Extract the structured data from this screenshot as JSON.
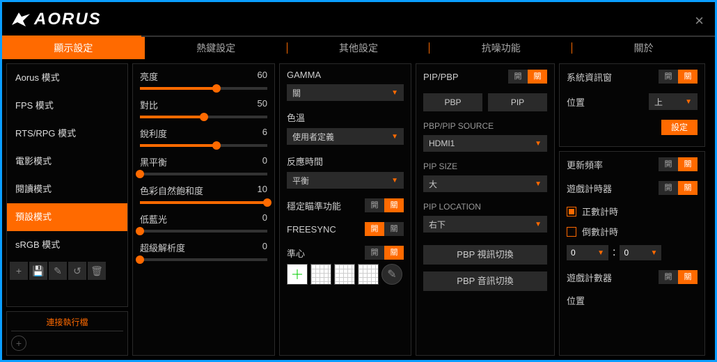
{
  "brand": "AORUS",
  "close_icon": "×",
  "tabs": [
    "顯示設定",
    "熱鍵設定",
    "其他設定",
    "抗噪功能",
    "關於"
  ],
  "active_tab": 0,
  "modes": [
    "Aorus 模式",
    "FPS 模式",
    "RTS/RPG 模式",
    "電影模式",
    "閱讀模式",
    "預設模式",
    "sRGB 模式"
  ],
  "active_mode": 5,
  "link_exec": "連接執行檔",
  "sliders": [
    {
      "label": "亮度",
      "value": 60,
      "max": 100
    },
    {
      "label": "對比",
      "value": 50,
      "max": 100
    },
    {
      "label": "銳利度",
      "value": 6,
      "max": 10
    },
    {
      "label": "黑平衡",
      "value": 0,
      "max": 10
    },
    {
      "label": "色彩自然飽和度",
      "value": 10,
      "max": 10
    },
    {
      "label": "低藍光",
      "value": 0,
      "max": 10
    },
    {
      "label": "超級解析度",
      "value": 0,
      "max": 10
    }
  ],
  "gamma": {
    "label": "GAMMA",
    "value": "關"
  },
  "color_temp": {
    "label": "色溫",
    "value": "使用者定義"
  },
  "response": {
    "label": "反應時間",
    "value": "平衡"
  },
  "aim_stab": {
    "label": "穩定瞄準功能",
    "on": "開",
    "off": "關",
    "active": "off"
  },
  "freesync": {
    "label": "FREESYNC",
    "on": "開",
    "off": "關",
    "active": "on"
  },
  "crosshair": {
    "label": "準心",
    "on": "開",
    "off": "關",
    "active": "off"
  },
  "pip": {
    "label": "PIP/PBP",
    "on": "開",
    "off": "關",
    "active": "off",
    "pbp_btn": "PBP",
    "pip_btn": "PIP",
    "source_label": "PBP/PIP SOURCE",
    "source_value": "HDMI1",
    "size_label": "PIP SIZE",
    "size_value": "大",
    "loc_label": "PIP LOCATION",
    "loc_value": "右下",
    "video_swap": "PBP 視訊切換",
    "audio_swap": "PBP 音訊切換"
  },
  "sysinfo": {
    "label": "系統資訊窗",
    "on": "開",
    "off": "關",
    "active": "off",
    "pos_label": "位置",
    "pos_value": "上",
    "set_btn": "設定"
  },
  "refresh": {
    "label": "更新頻率",
    "on": "開",
    "off": "關",
    "active": "off"
  },
  "timer": {
    "label": "遊戲計時器",
    "on": "開",
    "off": "關",
    "active": "off",
    "up": "正數計時",
    "down": "倒數計時",
    "checked": "up",
    "v1": "0",
    "v2": "0"
  },
  "counter": {
    "label": "遊戲計數器",
    "on": "開",
    "off": "關",
    "active": "off",
    "pos_label": "位置"
  },
  "toggle_labels": {
    "on": "開",
    "off": "關"
  }
}
